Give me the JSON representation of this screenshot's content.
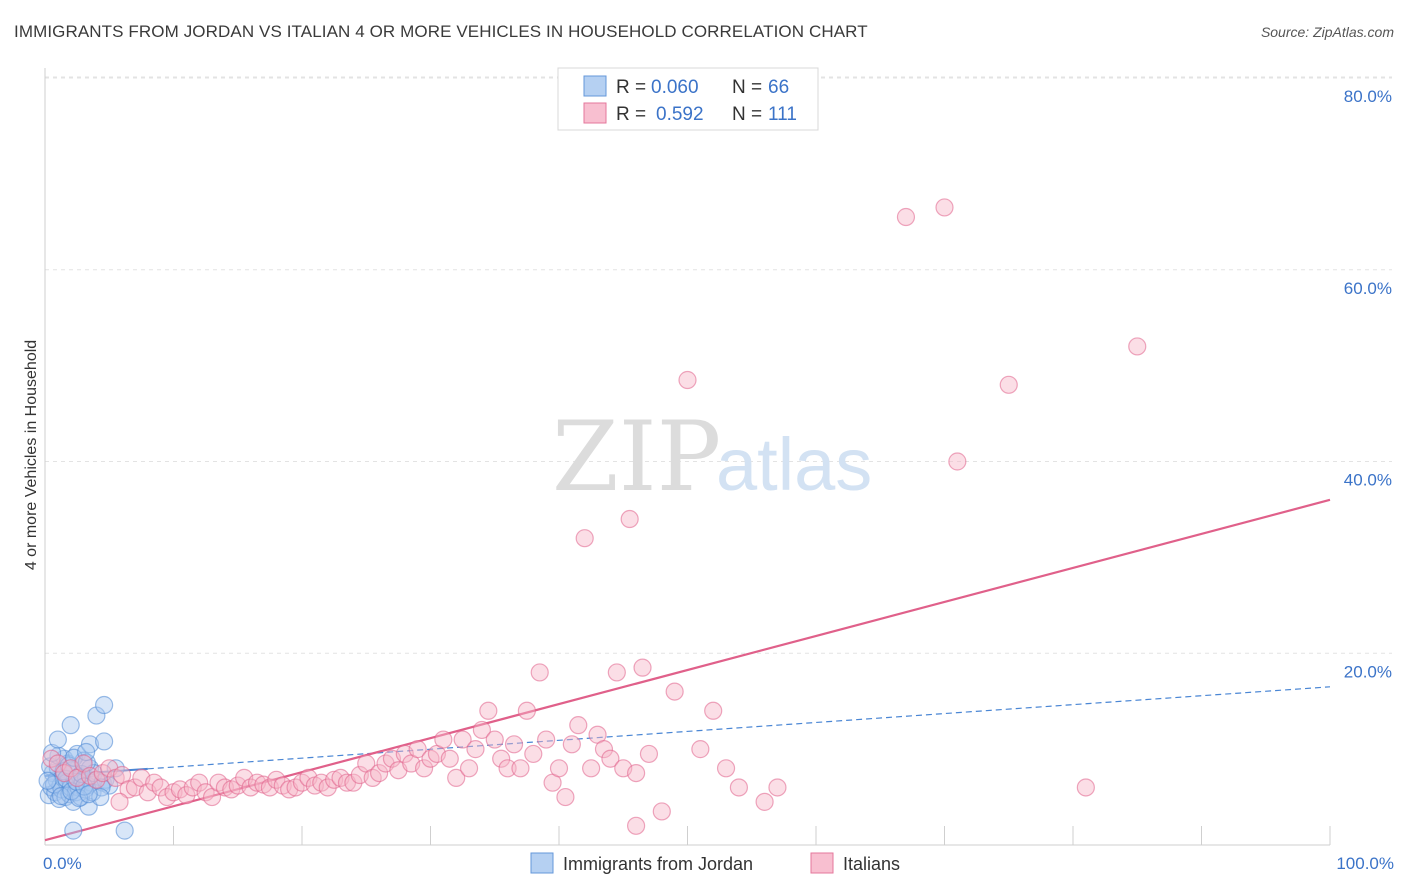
{
  "title": "IMMIGRANTS FROM JORDAN VS ITALIAN 4 OR MORE VEHICLES IN HOUSEHOLD CORRELATION CHART",
  "source": "Source: ZipAtlas.com",
  "watermark": {
    "zip": "ZIP",
    "atlas": "atlas"
  },
  "legend": [
    {
      "r_label": "R =",
      "r_value": "0.060",
      "n_label": "N =",
      "n_value": "66",
      "color": "#a9c8f0"
    },
    {
      "r_label": "R =",
      "r_value": "0.592",
      "n_label": "N =",
      "n_value": "111",
      "color": "#f7b5c8"
    }
  ],
  "bottom_legend": [
    {
      "label": "Immigrants from Jordan",
      "color": "#a9c8f0"
    },
    {
      "label": "Italians",
      "color": "#f7b5c8"
    }
  ],
  "chart_data": {
    "type": "scatter",
    "title": "IMMIGRANTS FROM JORDAN VS ITALIAN 4 OR MORE VEHICLES IN HOUSEHOLD CORRELATION CHART",
    "xlabel": "",
    "ylabel": "4 or more Vehicles in Household",
    "xlim": [
      0,
      100
    ],
    "ylim": [
      0,
      80
    ],
    "x_tick_labels": [
      "0.0%",
      "100.0%"
    ],
    "y_ticks": [
      20,
      40,
      60,
      80
    ],
    "y_tick_labels": [
      "20.0%",
      "40.0%",
      "60.0%",
      "80.0%"
    ],
    "grid": true,
    "legend_position": "top-center",
    "series": [
      {
        "name": "Immigrants from Jordan",
        "color": "#4a86d4",
        "fill": "#a9c8f0",
        "r": 0.06,
        "n": 66,
        "trend": {
          "x": [
            0,
            100
          ],
          "y": [
            7.2,
            16.5
          ],
          "solid_until": 8,
          "style": "dashed"
        },
        "points": [
          [
            0.3,
            5.2
          ],
          [
            0.5,
            6.0
          ],
          [
            0.6,
            7.5
          ],
          [
            0.8,
            5.5
          ],
          [
            0.9,
            6.8
          ],
          [
            1.0,
            8.0
          ],
          [
            1.1,
            4.8
          ],
          [
            1.2,
            6.2
          ],
          [
            1.3,
            5.8
          ],
          [
            1.4,
            7.0
          ],
          [
            1.5,
            9.0
          ],
          [
            1.6,
            5.0
          ],
          [
            1.7,
            6.5
          ],
          [
            1.8,
            8.5
          ],
          [
            1.9,
            5.3
          ],
          [
            2.0,
            6.0
          ],
          [
            2.1,
            7.8
          ],
          [
            2.2,
            4.5
          ],
          [
            2.3,
            6.8
          ],
          [
            2.4,
            5.5
          ],
          [
            2.5,
            9.5
          ],
          [
            2.6,
            6.0
          ],
          [
            2.7,
            7.2
          ],
          [
            2.8,
            5.0
          ],
          [
            2.9,
            6.5
          ],
          [
            3.0,
            8.8
          ],
          [
            3.1,
            5.8
          ],
          [
            3.2,
            7.0
          ],
          [
            3.3,
            6.2
          ],
          [
            3.4,
            4.0
          ],
          [
            3.5,
            8.0
          ],
          [
            3.6,
            6.5
          ],
          [
            3.7,
            5.5
          ],
          [
            3.8,
            7.5
          ],
          [
            0.4,
            8.2
          ],
          [
            0.7,
            6.3
          ],
          [
            1.05,
            9.3
          ],
          [
            1.25,
            5.1
          ],
          [
            1.45,
            7.7
          ],
          [
            1.65,
            6.9
          ],
          [
            1.85,
            8.3
          ],
          [
            2.05,
            5.6
          ],
          [
            2.25,
            9.1
          ],
          [
            2.45,
            6.6
          ],
          [
            2.65,
            4.9
          ],
          [
            2.85,
            7.4
          ],
          [
            3.05,
            6.1
          ],
          [
            3.25,
            8.6
          ],
          [
            0.2,
            6.7
          ],
          [
            0.55,
            9.6
          ],
          [
            2.0,
            12.5
          ],
          [
            1.0,
            11.0
          ],
          [
            3.5,
            10.5
          ],
          [
            4.0,
            13.5
          ],
          [
            3.2,
            9.7
          ],
          [
            4.5,
            6.5
          ],
          [
            4.6,
            10.8
          ],
          [
            2.2,
            1.5
          ],
          [
            6.2,
            1.5
          ],
          [
            4.7,
            6.8
          ],
          [
            5.0,
            6.2
          ],
          [
            5.5,
            8.0
          ],
          [
            4.4,
            6.0
          ],
          [
            4.3,
            5.0
          ],
          [
            3.4,
            5.3
          ],
          [
            4.6,
            14.6
          ]
        ]
      },
      {
        "name": "Italians",
        "color": "#e0608a",
        "fill": "#f7b5c8",
        "r": 0.592,
        "n": 111,
        "trend": {
          "x": [
            0,
            100
          ],
          "y": [
            0.5,
            36.0
          ],
          "style": "solid"
        },
        "points": [
          [
            0.5,
            9.0
          ],
          [
            1.0,
            8.5
          ],
          [
            1.5,
            7.5
          ],
          [
            2.0,
            8.0
          ],
          [
            2.5,
            7.0
          ],
          [
            3.0,
            8.5
          ],
          [
            3.5,
            7.2
          ],
          [
            4.0,
            6.8
          ],
          [
            4.5,
            7.5
          ],
          [
            5.0,
            8.0
          ],
          [
            5.5,
            7.0
          ],
          [
            6.0,
            7.3
          ],
          [
            6.5,
            5.8
          ],
          [
            7.0,
            6.0
          ],
          [
            7.5,
            7.0
          ],
          [
            8.0,
            5.5
          ],
          [
            8.5,
            6.5
          ],
          [
            9.0,
            6.0
          ],
          [
            9.5,
            5.0
          ],
          [
            10.0,
            5.5
          ],
          [
            10.5,
            5.8
          ],
          [
            11.0,
            5.2
          ],
          [
            11.5,
            6.0
          ],
          [
            12.0,
            6.5
          ],
          [
            12.5,
            5.5
          ],
          [
            13.0,
            5.0
          ],
          [
            13.5,
            6.5
          ],
          [
            14.0,
            6.0
          ],
          [
            14.5,
            5.8
          ],
          [
            15.0,
            6.2
          ],
          [
            15.5,
            7.0
          ],
          [
            16.0,
            6.0
          ],
          [
            16.5,
            6.5
          ],
          [
            17.0,
            6.3
          ],
          [
            17.5,
            6.0
          ],
          [
            18.0,
            6.8
          ],
          [
            18.5,
            6.2
          ],
          [
            19.0,
            5.8
          ],
          [
            19.5,
            6.0
          ],
          [
            20.0,
            6.5
          ],
          [
            20.5,
            7.0
          ],
          [
            21.0,
            6.2
          ],
          [
            21.5,
            6.5
          ],
          [
            22.0,
            6.0
          ],
          [
            22.5,
            6.8
          ],
          [
            23.0,
            7.0
          ],
          [
            23.5,
            6.5
          ],
          [
            24.0,
            6.5
          ],
          [
            24.5,
            7.3
          ],
          [
            25.0,
            8.5
          ],
          [
            25.5,
            7.0
          ],
          [
            26.0,
            7.5
          ],
          [
            26.5,
            8.5
          ],
          [
            27.0,
            9.0
          ],
          [
            27.5,
            7.8
          ],
          [
            28.0,
            9.5
          ],
          [
            28.5,
            8.5
          ],
          [
            29.0,
            10.0
          ],
          [
            29.5,
            8.0
          ],
          [
            30.0,
            9.0
          ],
          [
            30.5,
            9.5
          ],
          [
            31.0,
            11.0
          ],
          [
            31.5,
            9.0
          ],
          [
            32.0,
            7.0
          ],
          [
            32.5,
            11.0
          ],
          [
            33.0,
            8.0
          ],
          [
            33.5,
            10.0
          ],
          [
            34.0,
            12.0
          ],
          [
            34.5,
            14.0
          ],
          [
            35.0,
            11.0
          ],
          [
            35.5,
            9.0
          ],
          [
            36.0,
            8.0
          ],
          [
            36.5,
            10.5
          ],
          [
            37.0,
            8.0
          ],
          [
            37.5,
            14.0
          ],
          [
            38.0,
            9.5
          ],
          [
            38.5,
            18.0
          ],
          [
            39.0,
            11.0
          ],
          [
            39.5,
            6.5
          ],
          [
            40.0,
            8.0
          ],
          [
            40.5,
            5.0
          ],
          [
            41.0,
            10.5
          ],
          [
            41.5,
            12.5
          ],
          [
            42.0,
            32.0
          ],
          [
            42.5,
            8.0
          ],
          [
            43.0,
            11.5
          ],
          [
            43.5,
            10.0
          ],
          [
            44.0,
            9.0
          ],
          [
            44.5,
            18.0
          ],
          [
            45.0,
            8.0
          ],
          [
            45.5,
            34.0
          ],
          [
            46.0,
            7.5
          ],
          [
            46.5,
            18.5
          ],
          [
            47.0,
            9.5
          ],
          [
            48.0,
            3.5
          ],
          [
            49.0,
            16.0
          ],
          [
            50.0,
            48.5
          ],
          [
            51.0,
            10.0
          ],
          [
            52.0,
            14.0
          ],
          [
            53.0,
            8.0
          ],
          [
            54.0,
            6.0
          ],
          [
            56.0,
            4.5
          ],
          [
            57.0,
            6.0
          ],
          [
            67.0,
            65.5
          ],
          [
            70.0,
            66.5
          ],
          [
            71.0,
            40.0
          ],
          [
            75.0,
            48.0
          ],
          [
            81.0,
            6.0
          ],
          [
            85.0,
            52.0
          ],
          [
            46.0,
            2.0
          ],
          [
            5.8,
            4.5
          ]
        ]
      }
    ]
  }
}
